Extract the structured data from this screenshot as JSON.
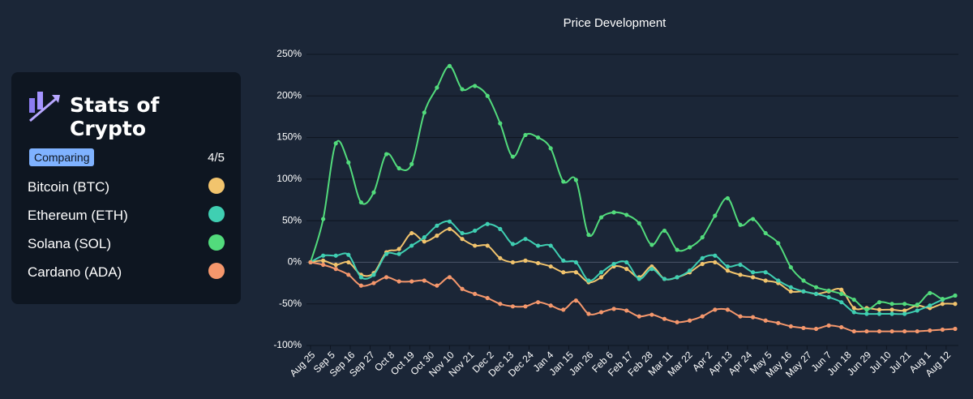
{
  "sidebar": {
    "brand": "Stats of Crypto",
    "badge": "Comparing",
    "count": "4/5"
  },
  "chart_data": {
    "type": "line",
    "title": "Price Development",
    "x": [
      0,
      7,
      14,
      21,
      28,
      35,
      42,
      49,
      56,
      63,
      70,
      77,
      84,
      91,
      98,
      105,
      112,
      119,
      126,
      133,
      140,
      147,
      154,
      161,
      168,
      175,
      182,
      189,
      196,
      203,
      210,
      217,
      224,
      231,
      238,
      245,
      252,
      259,
      266,
      273,
      280,
      287,
      294,
      301,
      308,
      315,
      322,
      329,
      336,
      343,
      350,
      357
    ],
    "xlim": [
      0,
      357
    ],
    "xticks": [
      {
        "value": 0,
        "label": "Aug 25"
      },
      {
        "value": 11,
        "label": "Sep 5"
      },
      {
        "value": 22,
        "label": "Sep 16"
      },
      {
        "value": 33,
        "label": "Sep 27"
      },
      {
        "value": 44,
        "label": "Oct 8"
      },
      {
        "value": 55,
        "label": "Oct 19"
      },
      {
        "value": 66,
        "label": "Oct 30"
      },
      {
        "value": 77,
        "label": "Nov 10"
      },
      {
        "value": 88,
        "label": "Nov 21"
      },
      {
        "value": 99,
        "label": "Dec 2"
      },
      {
        "value": 110,
        "label": "Dec 13"
      },
      {
        "value": 121,
        "label": "Dec 24"
      },
      {
        "value": 132,
        "label": "Jan 4"
      },
      {
        "value": 143,
        "label": "Jan 15"
      },
      {
        "value": 154,
        "label": "Jan 26"
      },
      {
        "value": 165,
        "label": "Feb 6"
      },
      {
        "value": 176,
        "label": "Feb 17"
      },
      {
        "value": 187,
        "label": "Feb 28"
      },
      {
        "value": 198,
        "label": "Mar 11"
      },
      {
        "value": 209,
        "label": "Mar 22"
      },
      {
        "value": 220,
        "label": "Apr 2"
      },
      {
        "value": 231,
        "label": "Apr 13"
      },
      {
        "value": 242,
        "label": "Apr 24"
      },
      {
        "value": 253,
        "label": "May 5"
      },
      {
        "value": 264,
        "label": "May 16"
      },
      {
        "value": 275,
        "label": "May 27"
      },
      {
        "value": 286,
        "label": "Jun 7"
      },
      {
        "value": 297,
        "label": "Jun 18"
      },
      {
        "value": 308,
        "label": "Jun 29"
      },
      {
        "value": 319,
        "label": "Jul 10"
      },
      {
        "value": 330,
        "label": "Jul 21"
      },
      {
        "value": 341,
        "label": "Aug 1"
      },
      {
        "value": 352,
        "label": "Aug 12"
      }
    ],
    "ylim": [
      -100,
      250
    ],
    "yticks": [
      {
        "value": -100,
        "label": "-100%"
      },
      {
        "value": -50,
        "label": "-50%"
      },
      {
        "value": 0,
        "label": "0%"
      },
      {
        "value": 50,
        "label": "50%"
      },
      {
        "value": 100,
        "label": "100%"
      },
      {
        "value": 150,
        "label": "150%"
      },
      {
        "value": 200,
        "label": "200%"
      },
      {
        "value": 250,
        "label": "250%"
      }
    ],
    "grid": true,
    "series": [
      {
        "name": "Bitcoin (BTC)",
        "color": "#f2c46d",
        "values": [
          0,
          2,
          -3,
          0,
          -15,
          -13,
          12,
          16,
          35,
          25,
          32,
          40,
          28,
          20,
          20,
          5,
          0,
          2,
          -1,
          -5,
          -12,
          -12,
          -24,
          -18,
          -5,
          -8,
          -18,
          -5,
          -20,
          -18,
          -12,
          -2,
          0,
          -10,
          -15,
          -18,
          -22,
          -25,
          -35,
          -35,
          -38,
          -35,
          -33,
          -55,
          -55,
          -57,
          -57,
          -58,
          -52,
          -55,
          -50,
          -50
        ]
      },
      {
        "name": "Ethereum (ETH)",
        "color": "#3fcfb2",
        "values": [
          0,
          8,
          8,
          9,
          -18,
          -15,
          10,
          10,
          20,
          30,
          44,
          49,
          35,
          38,
          46,
          40,
          22,
          28,
          20,
          20,
          2,
          0,
          -22,
          -12,
          -2,
          0,
          -20,
          -8,
          -20,
          -18,
          -10,
          5,
          8,
          -5,
          -3,
          -12,
          -12,
          -22,
          -30,
          -35,
          -38,
          -42,
          -48,
          -60,
          -62,
          -62,
          -62,
          -62,
          -58,
          -52,
          -45,
          -40
        ]
      },
      {
        "name": "Solana (SOL)",
        "color": "#52db7c",
        "values": [
          0,
          52,
          143,
          120,
          72,
          84,
          130,
          113,
          118,
          180,
          210,
          236,
          208,
          212,
          200,
          167,
          127,
          153,
          150,
          137,
          97,
          99,
          33,
          54,
          60,
          57,
          47,
          21,
          38,
          15,
          18,
          30,
          56,
          77,
          45,
          52,
          35,
          23,
          -6,
          -22,
          -30,
          -34,
          -38,
          -45,
          -57,
          -48,
          -50,
          -50,
          -51,
          -37,
          -44,
          -40
        ]
      },
      {
        "name": "Cardano (ADA)",
        "color": "#f5976c",
        "values": [
          0,
          -3,
          -8,
          -15,
          -28,
          -25,
          -18,
          -23,
          -23,
          -22,
          -28,
          -18,
          -32,
          -38,
          -43,
          -50,
          -53,
          -53,
          -48,
          -52,
          -57,
          -46,
          -62,
          -60,
          -56,
          -58,
          -65,
          -63,
          -68,
          -72,
          -70,
          -65,
          -57,
          -57,
          -65,
          -66,
          -70,
          -73,
          -77,
          -79,
          -80,
          -76,
          -78,
          -83,
          -83,
          -83,
          -83,
          -83,
          -83,
          -82,
          -81,
          -80
        ]
      }
    ]
  }
}
